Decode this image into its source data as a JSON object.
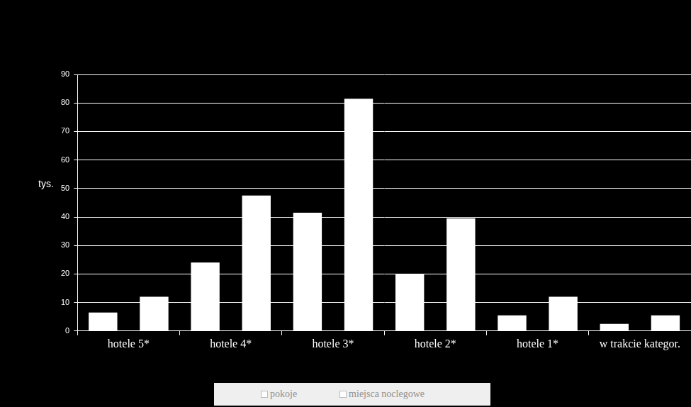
{
  "chart_data": {
    "type": "bar",
    "y_label": "tys.",
    "categories": [
      "hotele 5*",
      "hotele 4*",
      "hotele 3*",
      "hotele 2*",
      "hotele 1*",
      "w trakcie kategor."
    ],
    "series": [
      {
        "name": "pokoje",
        "color": "#ffffff",
        "values": [
          6.5,
          24,
          41.5,
          20,
          5.5,
          2.5
        ]
      },
      {
        "name": "miejsca noclegowe",
        "color": "#ffffff",
        "values": [
          12,
          47.5,
          81.5,
          39.5,
          12,
          5.5
        ]
      }
    ],
    "ylim": [
      0,
      90
    ],
    "yticks": [
      0,
      10,
      20,
      30,
      40,
      50,
      60,
      70,
      80,
      90
    ],
    "grid": true,
    "legend": "bottom"
  }
}
